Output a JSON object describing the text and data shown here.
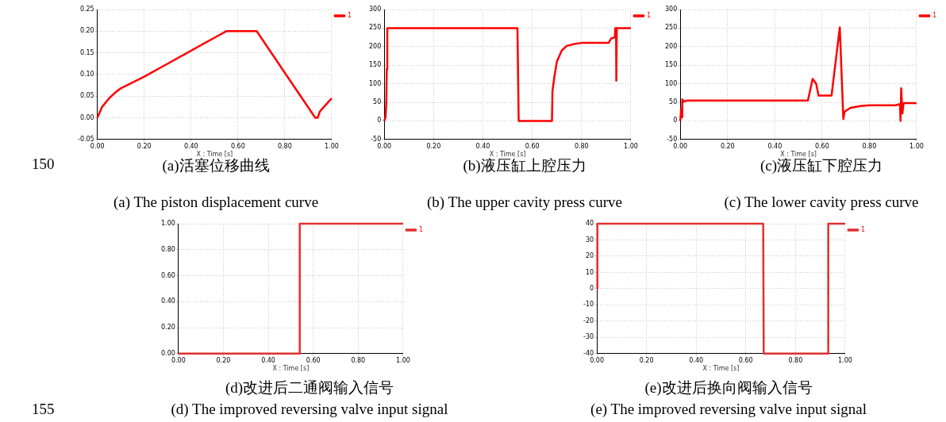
{
  "chart_data": [
    {
      "type": "line",
      "xlabel": "X : Time [s]",
      "annotations": [
        "(a)活塞位移曲线",
        "(a) The piston displacement curve",
        "150"
      ],
      "xlim": [
        0,
        1
      ],
      "xticks": [
        {
          "value": 0,
          "label": "0.00"
        },
        {
          "value": 0.2,
          "label": "0.20"
        },
        {
          "value": 0.4,
          "label": "0.40"
        },
        {
          "value": 0.6,
          "label": "0.60"
        },
        {
          "value": 0.8,
          "label": "0.80"
        },
        {
          "value": 1,
          "label": "1.00"
        }
      ],
      "ylim": [
        -0.05,
        0.25
      ],
      "yticks": [
        {
          "value": -0.05,
          "label": "-0.05"
        },
        {
          "value": 0,
          "label": "0.00"
        },
        {
          "value": 0.05,
          "label": "0.05"
        },
        {
          "value": 0.1,
          "label": "0.10"
        },
        {
          "value": 0.15,
          "label": "0.15"
        },
        {
          "value": 0.2,
          "label": "0.20"
        },
        {
          "value": 0.25,
          "label": "0.25"
        }
      ],
      "grid": true,
      "legend": "top right",
      "series": [
        {
          "name": "1",
          "color": "#ff0000",
          "x": [
            0,
            0.02,
            0.05,
            0.08,
            0.1,
            0.2,
            0.3,
            0.4,
            0.5,
            0.55,
            0.68,
            0.8,
            0.93,
            0.94,
            0.95,
            1
          ],
          "values": [
            0,
            0.025,
            0.045,
            0.06,
            0.068,
            0.095,
            0.125,
            0.155,
            0.185,
            0.2,
            0.2,
            0.104,
            0,
            0,
            0.015,
            0.045
          ]
        }
      ]
    },
    {
      "type": "line",
      "xlabel": "X : Time [s]",
      "annotations": [
        "(b)液压缸上腔压力",
        "(b) The upper cavity press curve"
      ],
      "xlim": [
        0,
        1
      ],
      "xticks": [
        {
          "value": 0,
          "label": "0.00"
        },
        {
          "value": 0.2,
          "label": "0.20"
        },
        {
          "value": 0.4,
          "label": "0.40"
        },
        {
          "value": 0.6,
          "label": "0.60"
        },
        {
          "value": 0.8,
          "label": "0.80"
        },
        {
          "value": 1,
          "label": "1.00"
        }
      ],
      "ylim": [
        -50,
        300
      ],
      "yticks": [
        -50,
        0,
        50,
        100,
        150,
        200,
        250,
        300
      ],
      "grid": true,
      "legend": "top right",
      "series": [
        {
          "name": "1",
          "color": "#ff0000",
          "x": [
            0,
            0.005,
            0.008,
            0.01,
            0.012,
            0.54,
            0.545,
            0.68,
            0.682,
            0.69,
            0.7,
            0.72,
            0.74,
            0.77,
            0.8,
            0.91,
            0.92,
            0.935,
            0.937,
            0.94,
            0.941,
            0.943,
            1
          ],
          "values": [
            0,
            10,
            50,
            140,
            250,
            250,
            0,
            0,
            80,
            120,
            160,
            190,
            202,
            207,
            210,
            210,
            222,
            225,
            250,
            250,
            108,
            250,
            250
          ]
        }
      ]
    },
    {
      "type": "line",
      "xlabel": "X : Time [s]",
      "annotations": [
        "(c)液压缸下腔压力",
        "(c) The lower cavity press curve"
      ],
      "xlim": [
        0,
        1
      ],
      "xticks": [
        {
          "value": 0,
          "label": "0.00"
        },
        {
          "value": 0.2,
          "label": "0.20"
        },
        {
          "value": 0.4,
          "label": "0.40"
        },
        {
          "value": 0.6,
          "label": "0.60"
        },
        {
          "value": 0.8,
          "label": "0.80"
        },
        {
          "value": 1,
          "label": "1.00"
        }
      ],
      "ylim": [
        -50,
        300
      ],
      "yticks": [
        -50,
        0,
        50,
        100,
        150,
        200,
        250,
        300
      ],
      "grid": true,
      "legend": "top right",
      "series": [
        {
          "name": "1",
          "color": "#ff0000",
          "x": [
            0,
            0.003,
            0.006,
            0.008,
            0.015,
            0.03,
            0.54,
            0.56,
            0.575,
            0.585,
            0.64,
            0.675,
            0.69,
            0.695,
            0.72,
            0.76,
            0.8,
            0.91,
            0.93,
            0.932,
            0.935,
            0.94,
            0.945,
            1
          ],
          "values": [
            0,
            30,
            10,
            58,
            52,
            55,
            55,
            113,
            100,
            68,
            68,
            252,
            5,
            25,
            35,
            40,
            42,
            42,
            45,
            0,
            88,
            20,
            48,
            48
          ]
        }
      ]
    },
    {
      "type": "line",
      "xlabel": "X : Time [s]",
      "annotations": [
        "(d)改进后二通阀输入信号",
        "(d) The improved reversing valve input signal",
        "155"
      ],
      "xlim": [
        0,
        1
      ],
      "xticks": [
        {
          "value": 0,
          "label": "0.00"
        },
        {
          "value": 0.2,
          "label": "0.20"
        },
        {
          "value": 0.4,
          "label": "0.40"
        },
        {
          "value": 0.6,
          "label": "0.60"
        },
        {
          "value": 0.8,
          "label": "0.80"
        },
        {
          "value": 1,
          "label": "1.00"
        }
      ],
      "ylim": [
        0,
        1
      ],
      "yticks": [
        {
          "value": 0,
          "label": "0.00"
        },
        {
          "value": 0.2,
          "label": "0.20"
        },
        {
          "value": 0.4,
          "label": "0.40"
        },
        {
          "value": 0.6,
          "label": "0.60"
        },
        {
          "value": 0.8,
          "label": "0.80"
        },
        {
          "value": 1,
          "label": "1.00"
        }
      ],
      "grid": true,
      "legend": "top right",
      "series": [
        {
          "name": "1",
          "color": "#e03030",
          "x": [
            0,
            0.54,
            0.54,
            1
          ],
          "values": [
            0,
            0,
            1,
            1
          ]
        }
      ]
    },
    {
      "type": "line",
      "xlabel": "X : Time [s]",
      "annotations": [
        "(e)改进后换向阀输入信号",
        "(e) The improved reversing valve input signal"
      ],
      "xlim": [
        0,
        1
      ],
      "xticks": [
        {
          "value": 0,
          "label": "0.00"
        },
        {
          "value": 0.2,
          "label": "0.20"
        },
        {
          "value": 0.4,
          "label": "0.40"
        },
        {
          "value": 0.6,
          "label": "0.60"
        },
        {
          "value": 0.8,
          "label": "0.80"
        },
        {
          "value": 1,
          "label": "1.00"
        }
      ],
      "ylim": [
        -40,
        40
      ],
      "yticks": [
        -40,
        -30,
        -20,
        -10,
        0,
        10,
        20,
        30,
        40
      ],
      "grid": true,
      "legend": "top right",
      "series": [
        {
          "name": "1",
          "color": "#e03030",
          "x": [
            0,
            0.002,
            0.67,
            0.672,
            0.93,
            0.932,
            1
          ],
          "values": [
            0,
            40,
            40,
            -40,
            -40,
            40,
            40
          ]
        }
      ]
    }
  ]
}
